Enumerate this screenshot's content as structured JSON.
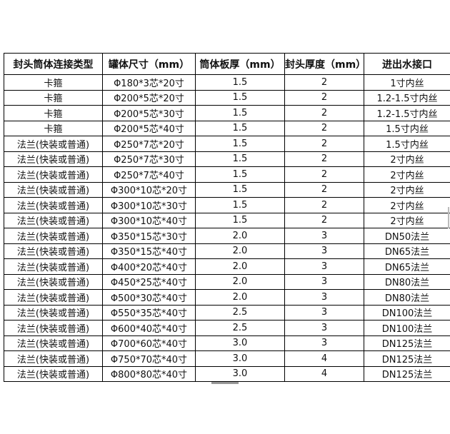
{
  "table": {
    "headers": [
      "封头筒体连接类型",
      "罐体尺寸（mm）",
      "筒体板厚（mm）",
      "封头厚度（mm）",
      "进出水接口"
    ],
    "rows": [
      [
        "卡箍",
        "Φ180*3芯*20寸",
        "1.5",
        "2",
        "1寸内丝"
      ],
      [
        "卡箍",
        "Φ200*5芯*20寸",
        "1.5",
        "2",
        "1.2-1.5寸内丝"
      ],
      [
        "卡箍",
        "Φ200*5芯*30寸",
        "1.5",
        "2",
        "1.2-1.5寸内丝"
      ],
      [
        "卡箍",
        "Φ200*5芯*40寸",
        "1.5",
        "2",
        "1.5寸内丝"
      ],
      [
        "法兰(快装或普通)",
        "Φ250*7芯*20寸",
        "1.5",
        "2",
        "1.5寸内丝"
      ],
      [
        "法兰(快装或普通)",
        "Φ250*7芯*30寸",
        "1.5",
        "2",
        "2寸内丝"
      ],
      [
        "法兰(快装或普通)",
        "Φ250*7芯*40寸",
        "1.5",
        "2",
        "2寸内丝"
      ],
      [
        "法兰(快装或普通)",
        "Φ300*10芯*20寸",
        "1.5",
        "2",
        "2寸内丝"
      ],
      [
        "法兰(快装或普通)",
        "Φ300*10芯*30寸",
        "1.5",
        "2",
        "2寸内丝"
      ],
      [
        "法兰(快装或普通)",
        "Φ300*10芯*40寸",
        "1.5",
        "2",
        "2寸内丝"
      ],
      [
        "法兰(快装或普通)",
        "Φ350*15芯*30寸",
        "2.0",
        "3",
        "DN50法兰"
      ],
      [
        "法兰(快装或普通)",
        "Φ350*15芯*40寸",
        "2.0",
        "3",
        "DN65法兰"
      ],
      [
        "法兰(快装或普通)",
        "Φ400*20芯*40寸",
        "2.0",
        "3",
        "DN65法兰"
      ],
      [
        "法兰(快装或普通)",
        "Φ450*25芯*40寸",
        "2.0",
        "3",
        "DN80法兰"
      ],
      [
        "法兰(快装或普通)",
        "Φ500*30芯*40寸",
        "2.0",
        "3",
        "DN80法兰"
      ],
      [
        "法兰(快装或普通)",
        "Φ550*35芯*40寸",
        "2.5",
        "3",
        "DN100法兰"
      ],
      [
        "法兰(快装或普通)",
        "Φ600*40芯*40寸",
        "2.5",
        "3",
        "DN100法兰"
      ],
      [
        "法兰(快装或普通)",
        "Φ700*60芯*40寸",
        "3.0",
        "3",
        "DN125法兰"
      ],
      [
        "法兰(快装或普通)",
        "Φ750*70芯*40寸",
        "3.0",
        "4",
        "DN125法兰"
      ],
      [
        "法兰(快装或普通)",
        "Φ800*80芯*40寸",
        "3.0",
        "4",
        "DN125法兰"
      ]
    ]
  }
}
